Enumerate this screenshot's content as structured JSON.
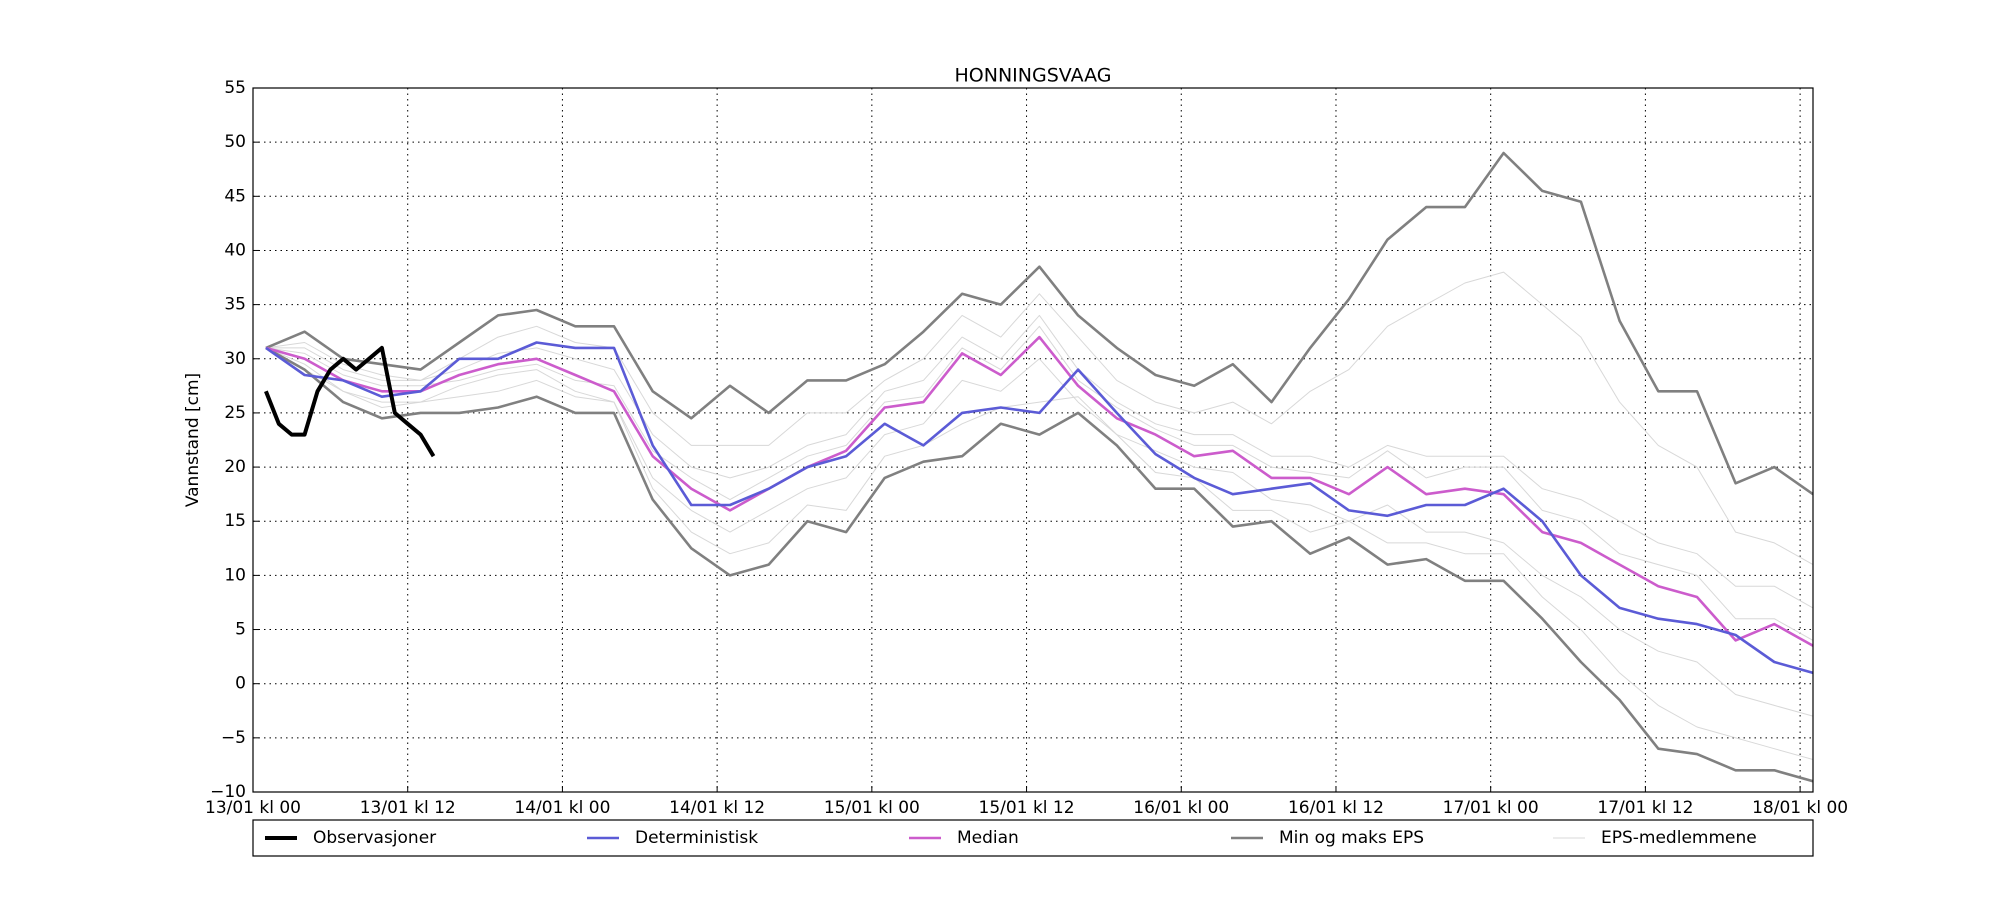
{
  "chart_data": {
    "type": "line",
    "title": "HONNINGSVAAG",
    "y_label": "Vannstand [cm]",
    "grid": true,
    "legend": "bottom",
    "xlim": [
      0,
      121
    ],
    "xticks": [
      {
        "value": 0,
        "label": "13/01 kl 00"
      },
      {
        "value": 12,
        "label": "13/01 kl 12"
      },
      {
        "value": 24,
        "label": "14/01 kl 00"
      },
      {
        "value": 36,
        "label": "14/01 kl 12"
      },
      {
        "value": 48,
        "label": "15/01 kl 00"
      },
      {
        "value": 60,
        "label": "15/01 kl 12"
      },
      {
        "value": 72,
        "label": "16/01 kl 00"
      },
      {
        "value": 84,
        "label": "16/01 kl 12"
      },
      {
        "value": 96,
        "label": "17/01 kl 00"
      },
      {
        "value": 108,
        "label": "17/01 kl 12"
      },
      {
        "value": 120,
        "label": "18/01 kl 00"
      }
    ],
    "ylim": [
      -10,
      55
    ],
    "yticks": [
      {
        "value": -10,
        "label": "−10"
      },
      {
        "value": -5,
        "label": "−5"
      },
      0,
      5,
      10,
      15,
      20,
      25,
      30,
      35,
      40,
      45,
      50,
      55
    ],
    "x": [
      1,
      4,
      7,
      10,
      13,
      16,
      19,
      22,
      25,
      28,
      31,
      34,
      37,
      40,
      43,
      46,
      49,
      52,
      55,
      58,
      61,
      64,
      67,
      70,
      73,
      76,
      79,
      82,
      85,
      88,
      91,
      94,
      97,
      100,
      103,
      106,
      109,
      112,
      115,
      118,
      121
    ],
    "series": [
      {
        "name": "Observasjoner",
        "color": "#000000",
        "line_width": 4,
        "x": [
          1,
          2,
          3,
          4,
          5,
          6,
          7,
          8,
          9,
          10,
          11,
          12,
          13,
          14
        ],
        "values": [
          27,
          24,
          23,
          23,
          27,
          29,
          30,
          29,
          30,
          31,
          25,
          24,
          23,
          21
        ]
      },
      {
        "name": "Deterministisk",
        "color": "#5b5bd6",
        "line_width": 2.6,
        "values": [
          31,
          28.5,
          28,
          26.5,
          27,
          30,
          30,
          31.5,
          31,
          31,
          22,
          16.5,
          16.5,
          18,
          20,
          21,
          24,
          22,
          25,
          25.5,
          25,
          29,
          25,
          21.2,
          19,
          17.5,
          18,
          18.5,
          16,
          15.5,
          16.5,
          16.5,
          18,
          15,
          10,
          7,
          6,
          5.5,
          4.5,
          2,
          1
        ]
      },
      {
        "name": "Median",
        "color": "#cc5ccc",
        "line_width": 2.6,
        "values": [
          31,
          30,
          28,
          27,
          27,
          28.5,
          29.5,
          30,
          28.5,
          27,
          21,
          18,
          16,
          18,
          20,
          21.5,
          25.5,
          26,
          30.5,
          28.5,
          32,
          27.5,
          24.5,
          23,
          21,
          21.5,
          19,
          19,
          17.5,
          20,
          17.5,
          18,
          17.5,
          14,
          13,
          11,
          9,
          8,
          4,
          5.5,
          3.5
        ]
      },
      {
        "name": "Min og maks EPS",
        "color": "#808080",
        "line_width": 2.6,
        "values": [
          [
            31,
            29,
            26,
            24.5,
            25,
            25,
            25.5,
            26.5,
            25,
            25,
            17,
            12.5,
            10,
            11,
            15,
            14,
            19,
            20.5,
            21,
            24,
            23,
            25,
            22,
            18,
            18,
            14.5,
            15,
            12,
            13.5,
            11,
            11.5,
            9.5,
            9.5,
            6,
            2,
            -1.5,
            -6,
            -6.5,
            -8,
            -8,
            -9
          ],
          [
            31,
            32.5,
            30,
            29.5,
            29,
            31.5,
            34,
            34.5,
            33,
            33,
            27,
            24.5,
            27.5,
            25,
            28,
            28,
            29.5,
            32.5,
            36,
            35,
            38.5,
            34,
            31,
            28.5,
            27.5,
            29.5,
            26,
            31,
            35.5,
            41,
            44,
            44,
            49,
            45.5,
            44.5,
            33.5,
            27,
            27,
            18.5,
            20,
            17.5
          ]
        ]
      },
      {
        "name": "EPS-medlemmene",
        "color": "#d8d8d8",
        "line_width": 1,
        "values": [
          [
            31,
            31,
            29,
            28,
            28,
            29,
            30.5,
            31,
            30,
            29,
            23,
            20,
            19,
            20,
            22,
            23,
            27,
            28,
            32,
            30,
            34,
            29,
            26,
            24,
            23,
            23,
            21,
            21,
            20,
            22,
            21,
            21,
            21,
            18,
            17,
            15,
            13,
            12,
            9,
            9,
            7
          ],
          [
            31,
            29,
            27,
            26,
            26,
            27.5,
            28.5,
            29,
            27,
            26,
            19,
            16,
            14,
            16,
            18,
            19,
            23,
            24,
            28,
            27,
            30,
            26,
            23,
            21.5,
            20,
            19.5,
            17,
            16.5,
            15,
            16.5,
            14,
            14,
            13,
            10,
            8,
            5,
            3,
            2,
            -1,
            -2,
            -3
          ],
          [
            31,
            31.5,
            29.5,
            28.5,
            28,
            30,
            32,
            33,
            31.5,
            31,
            25,
            22,
            22,
            22,
            25,
            25,
            28,
            30,
            34,
            32,
            36,
            32,
            28,
            26,
            25,
            26,
            24,
            27,
            29,
            33,
            35,
            37,
            38,
            35,
            32,
            26,
            22,
            20,
            14,
            13,
            11
          ],
          [
            31,
            29.5,
            27,
            25.5,
            26,
            26.5,
            27,
            28,
            26.5,
            26,
            18,
            14,
            12,
            13,
            16.5,
            16,
            21,
            22,
            24,
            25.5,
            26,
            26.5,
            23,
            19.5,
            19,
            16,
            16,
            14,
            15,
            13,
            13,
            12,
            12,
            8,
            5,
            1,
            -2,
            -4,
            -5,
            -6,
            -7
          ],
          [
            31,
            30.5,
            28.5,
            27.5,
            27.5,
            28,
            29,
            29.5,
            28,
            27.5,
            21.5,
            19,
            17,
            19,
            21,
            22,
            26,
            26.5,
            31,
            29,
            33,
            28,
            25.5,
            23.5,
            22,
            22,
            20,
            19.5,
            19,
            21.5,
            19,
            20,
            20,
            16,
            15,
            12,
            11,
            10,
            6,
            6,
            4
          ]
        ]
      }
    ]
  }
}
